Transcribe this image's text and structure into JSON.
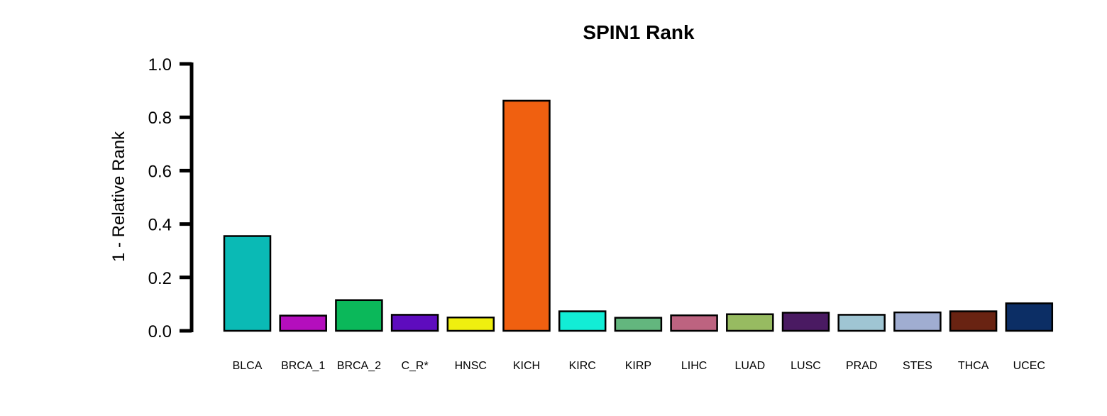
{
  "chart_data": {
    "type": "bar",
    "title": "SPIN1 Rank",
    "xlabel": "",
    "ylabel": "1 - Relative Rank",
    "ylim": [
      0,
      1.0
    ],
    "yticks": [
      "0.0",
      "0.2",
      "0.4",
      "0.6",
      "0.8",
      "1.0"
    ],
    "grid": false,
    "legend": "none",
    "categories": [
      "BLCA",
      "BRCA_1",
      "BRCA_2",
      "C_R*",
      "HNSC",
      "KICH",
      "KIRC",
      "KIRP",
      "LIHC",
      "LUAD",
      "LUSC",
      "PRAD",
      "STES",
      "THCA",
      "UCEC"
    ],
    "values": [
      0.355,
      0.057,
      0.115,
      0.06,
      0.05,
      0.862,
      0.073,
      0.049,
      0.058,
      0.062,
      0.068,
      0.06,
      0.069,
      0.073,
      0.103
    ],
    "colors": [
      "#0ABAB5",
      "#B40EBD",
      "#0BB85A",
      "#5E0CBE",
      "#EFEF0F",
      "#F06010",
      "#12EDD6",
      "#63B67E",
      "#BD6380",
      "#97BB61",
      "#4A1A62",
      "#9FC5D3",
      "#A0ADD1",
      "#692312",
      "#0C2E65"
    ]
  }
}
